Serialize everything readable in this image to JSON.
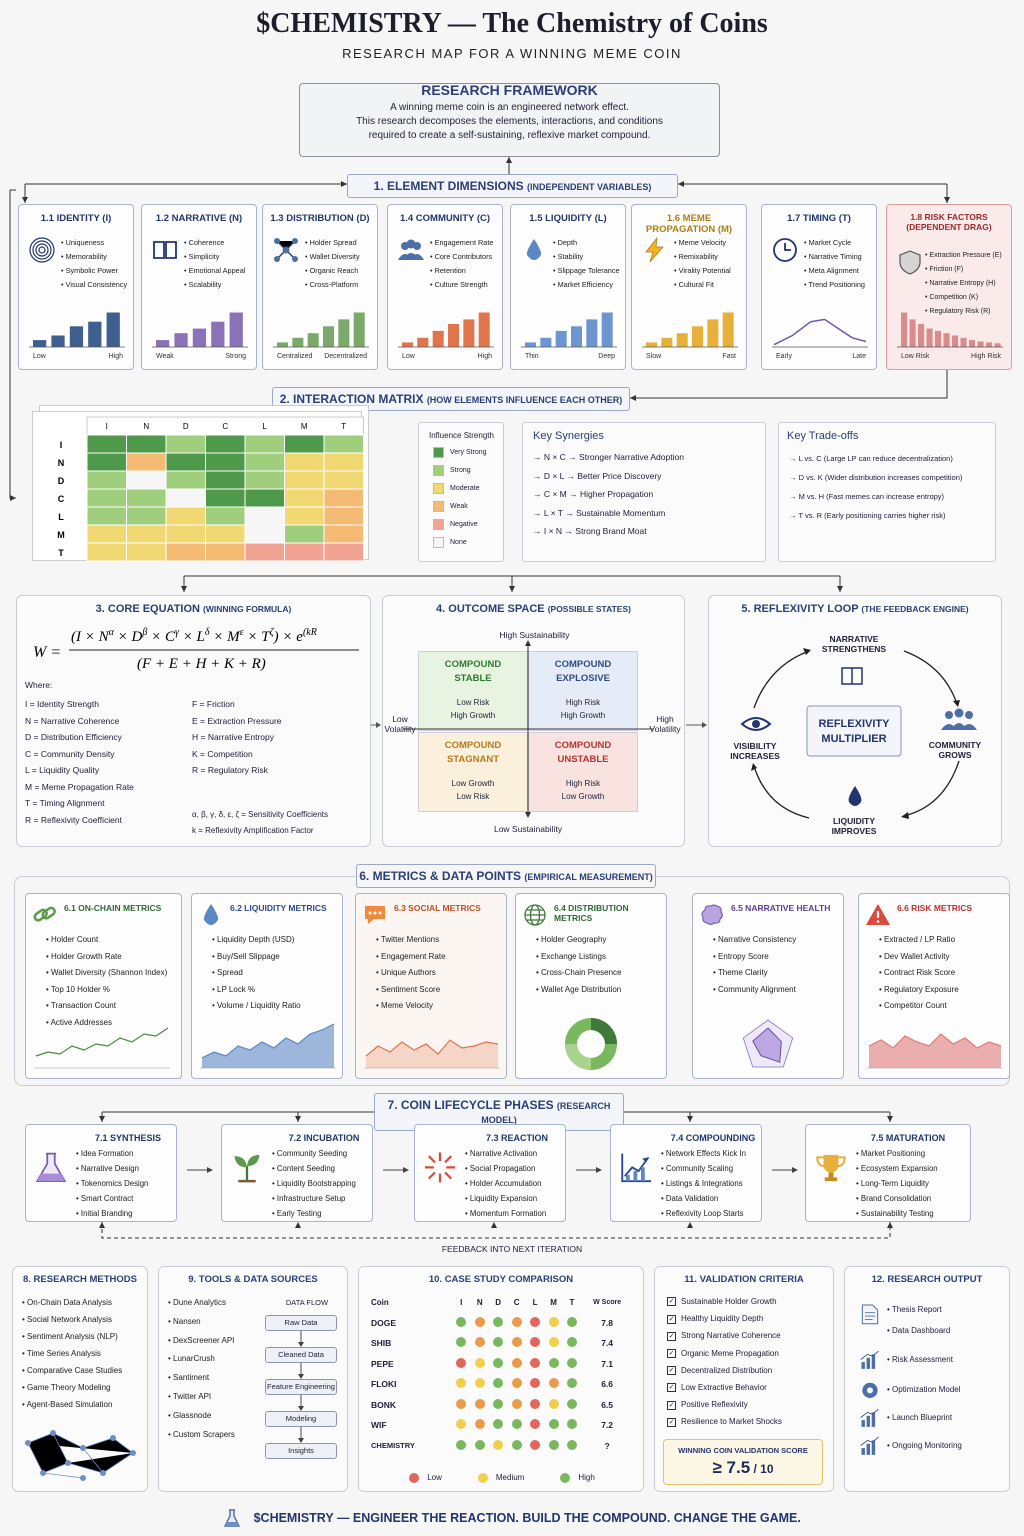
{
  "header": {
    "title": "$CHEMISTRY — The Chemistry of Coins",
    "subtitle": "RESEARCH MAP FOR A WINNING MEME COIN"
  },
  "framework": {
    "title": "RESEARCH FRAMEWORK",
    "lines": [
      "A winning meme coin is an engineered network effect.",
      "This research decomposes the elements, interactions, and conditions",
      "required to create a self-sustaining, reflexive market compound."
    ]
  },
  "s1": {
    "title": "1. ELEMENT DIMENSIONS",
    "sub": "(INDEPENDENT VARIABLES)",
    "cards": [
      {
        "title": "1.1 IDENTITY (I)",
        "icon": "fingerprint-icon",
        "items": [
          "Uniqueness",
          "Memorability",
          "Symbolic Power",
          "Visual Consistency"
        ],
        "lo": "Low",
        "hi": "High",
        "color": "#3f5f8f",
        "bars": [
          0.15,
          0.25,
          0.45,
          0.55,
          0.75
        ]
      },
      {
        "title": "1.2 NARRATIVE (N)",
        "icon": "book-icon",
        "items": [
          "Coherence",
          "Simplicity",
          "Emotional Appeal",
          "Scalability"
        ],
        "lo": "Weak",
        "hi": "Strong",
        "color": "#8a72b8",
        "bars": [
          0.15,
          0.3,
          0.4,
          0.55,
          0.75
        ]
      },
      {
        "title": "1.3 DISTRIBUTION (D)",
        "icon": "network-icon",
        "items": [
          "Holder Spread",
          "Wallet Diversity",
          "Organic Reach",
          "Cross-Platform"
        ],
        "lo": "Centralized",
        "hi": "Decentralized",
        "color": "#7aa96a",
        "bars": [
          0.1,
          0.2,
          0.3,
          0.45,
          0.6,
          0.75
        ]
      },
      {
        "title": "1.4 COMMUNITY (C)",
        "icon": "people-icon",
        "items": [
          "Engagement Rate",
          "Core Contributors",
          "Retention",
          "Culture Strength"
        ],
        "lo": "Low",
        "hi": "High",
        "color": "#e0744a",
        "bars": [
          0.1,
          0.2,
          0.35,
          0.5,
          0.6,
          0.75
        ]
      },
      {
        "title": "1.5 LIQUIDITY (L)",
        "icon": "droplet-icon",
        "items": [
          "Depth",
          "Stability",
          "Slippage Tolerance",
          "Market Efficiency"
        ],
        "lo": "Thin",
        "hi": "Deep",
        "color": "#6d96d0",
        "bars": [
          0.1,
          0.2,
          0.35,
          0.45,
          0.6,
          0.75
        ]
      },
      {
        "title": "1.6 MEME PROPAGATION (M)",
        "icon": "lightning-icon",
        "items": [
          "Meme Velocity",
          "Remixability",
          "Virality Potential",
          "Cultural Fit"
        ],
        "lo": "Slow",
        "hi": "Fast",
        "color": "#e8b03a",
        "bars": [
          0.1,
          0.2,
          0.3,
          0.45,
          0.6,
          0.75
        ]
      },
      {
        "title": "1.7 TIMING (T)",
        "icon": "clock-icon",
        "items": [
          "Market Cycle",
          "Narrative Timing",
          "Meta Alignment",
          "Trend Positioning"
        ],
        "lo": "Early",
        "hi": "Late",
        "color": "#6f59a8",
        "curve": true
      },
      {
        "title": "1.8 RISK FACTORS",
        "title2": "(DEPENDENT DRAG)",
        "icon": "shield-icon",
        "items": [
          "Extraction Pressure (E)",
          "Friction (F)",
          "Narrative Entropy (H)",
          "Competition (K)",
          "Regulatory Risk (R)"
        ],
        "lo": "Low Risk",
        "hi": "High Risk",
        "color": "#d98c8c",
        "bars": [
          0.75,
          0.6,
          0.5,
          0.4,
          0.35,
          0.3,
          0.25,
          0.2,
          0.15,
          0.12,
          0.1,
          0.08
        ]
      }
    ]
  },
  "s2": {
    "title": "2. INTERACTION MATRIX",
    "sub": "(HOW ELEMENTS INFLUENCE EACH OTHER)",
    "cols": [
      "I",
      "N",
      "D",
      "C",
      "L",
      "M",
      "T"
    ],
    "grid": [
      [
        "vs",
        "vs",
        "s",
        "vs",
        "s",
        "vs",
        "s"
      ],
      [
        "vs",
        "w",
        "vs",
        "vs",
        "s",
        "m",
        "m"
      ],
      [
        "s",
        "n",
        "s",
        "vs",
        "s",
        "m",
        "m"
      ],
      [
        "s",
        "s",
        "n",
        "vs",
        "vs",
        "m",
        "w"
      ],
      [
        "s",
        "s",
        "m",
        "s",
        "n",
        "m",
        "w"
      ],
      [
        "m",
        "m",
        "m",
        "m",
        "n",
        "s",
        "w"
      ],
      [
        "m",
        "m",
        "w",
        "w",
        "ng",
        "ng",
        "ng"
      ]
    ],
    "legend_title": "Influence Strength",
    "legend": [
      [
        "Very Strong",
        "#4f9a4a"
      ],
      [
        "Strong",
        "#9fce7c"
      ],
      [
        "Moderate",
        "#f2d872"
      ],
      [
        "Weak",
        "#f5bb74"
      ],
      [
        "Negative",
        "#f2a393"
      ],
      [
        "None",
        "#f6f6f6"
      ]
    ],
    "syn_title": "Key Synergies",
    "synergies": [
      "N × C → Stronger Narrative Adoption",
      "D × L → Better Price Discovery",
      "C × M → Higher Propagation",
      "L × T → Sustainable Momentum",
      "I × N → Strong Brand Moat"
    ],
    "trade_title": "Key Trade-offs",
    "tradeoffs": [
      "L vs. C  (Large LP can reduce decentralization)",
      "D vs. K  (Wider distribution increases competition)",
      "M vs. H  (Fast memes can increase entropy)",
      "T vs. R  (Early positioning carries higher risk)"
    ]
  },
  "s3": {
    "title": "3. CORE EQUATION",
    "sub": "(WINNING FORMULA)",
    "where": "Where:",
    "left": [
      "I  = Identity Strength",
      "N  = Narrative Coherence",
      "D  = Distribution Efficiency",
      "C  = Community Density",
      "L  = Liquidity Quality",
      "M = Meme Propagation Rate",
      "T  = Timing Alignment",
      "R  = Reflexivity Coefficient"
    ],
    "right": [
      "F  = Friction",
      "E  = Extraction Pressure",
      "H  = Narrative Entropy",
      "K  = Competition",
      "R  = Regulatory Risk"
    ],
    "coef1": "α, β, γ, δ, ε, ζ  = Sensitivity Coefficients",
    "coef2": "k  = Reflexivity Amplification Factor"
  },
  "s4": {
    "title": "4. OUTCOME SPACE",
    "sub": "(POSSIBLE STATES)",
    "top": "High Sustainability",
    "bottom": "Low Sustainability",
    "left": "Low\nVolatility",
    "right": "High\nVolatility",
    "q": [
      {
        "t": "COMPOUND\nSTABLE",
        "d": "Low Risk\nHigh Growth",
        "c": "#2f7a32",
        "bg": "#e9f3e2"
      },
      {
        "t": "COMPOUND\nEXPLOSIVE",
        "d": "High Risk\nHigh Growth",
        "c": "#2b4b8e",
        "bg": "#e6ecf7"
      },
      {
        "t": "COMPOUND\nSTAGNANT",
        "d": "Low Growth\nLow Risk",
        "c": "#b97a1c",
        "bg": "#fbf0dc"
      },
      {
        "t": "COMPOUND\nUNSTABLE",
        "d": "High Risk\nLow Growth",
        "c": "#b8342e",
        "bg": "#f9e3e0"
      }
    ]
  },
  "s5": {
    "title": "5. REFLEXIVITY LOOP",
    "sub": "(THE FEEDBACK ENGINE)",
    "center": "REFLEXIVITY\nMULTIPLIER",
    "top": "NARRATIVE\nSTRENGTHENS",
    "right": "COMMUNITY\nGROWS",
    "bottom": "LIQUIDITY\nIMPROVES",
    "left": "VISIBILITY\nINCREASES"
  },
  "s6": {
    "title": "6. METRICS & DATA POINTS",
    "sub": "(EMPIRICAL MEASUREMENT)",
    "cards": [
      {
        "title": "6.1 ON-CHAIN METRICS",
        "icon": "link-icon",
        "color": "#2f6b34",
        "items": [
          "Holder Count",
          "Holder Growth Rate",
          "Wallet Diversity (Shannon Index)",
          "Top 10 Holder %",
          "Transaction Count",
          "Active Addresses"
        ]
      },
      {
        "title": "6.2 LIQUIDITY METRICS",
        "icon": "droplet-icon",
        "color": "#2b4b8e",
        "items": [
          "Liquidity Depth (USD)",
          "Buy/Sell Slippage",
          "Spread",
          "LP Lock %",
          "Volume / Liquidity Ratio"
        ]
      },
      {
        "title": "6.3 SOCIAL METRICS",
        "icon": "chat-icon",
        "color": "#c0501e",
        "items": [
          "Twitter Mentions",
          "Engagement Rate",
          "Unique Authors",
          "Sentiment Score",
          "Meme Velocity"
        ]
      },
      {
        "title": "6.4 DISTRIBUTION METRICS",
        "icon": "globe-icon",
        "color": "#2f6b34",
        "items": [
          "Holder Geography",
          "Exchange Listings",
          "Cross-Chain Presence",
          "Wallet Age Distribution"
        ]
      },
      {
        "title": "6.5 NARRATIVE HEALTH",
        "icon": "brain-icon",
        "color": "#5c3f96",
        "items": [
          "Narrative Consistency",
          "Entropy Score",
          "Theme Clarity",
          "Community Alignment"
        ]
      },
      {
        "title": "6.6 RISK METRICS",
        "icon": "warning-icon",
        "color": "#b8342e",
        "items": [
          "Extracted / LP Ratio",
          "Dev Wallet Activity",
          "Contract Risk Score",
          "Regulatory Exposure",
          "Competitor Count"
        ]
      }
    ]
  },
  "s7": {
    "title": "7. COIN LIFECYCLE PHASES",
    "sub": "(RESEARCH MODEL)",
    "feedback": "FEEDBACK INTO NEXT ITERATION",
    "phases": [
      {
        "title": "7.1 SYNTHESIS",
        "icon": "flask-icon",
        "items": [
          "Idea Formation",
          "Narrative Design",
          "Tokenomics Design",
          "Smart Contract",
          "Initial Branding"
        ]
      },
      {
        "title": "7.2 INCUBATION",
        "icon": "sprout-icon",
        "items": [
          "Community Seeding",
          "Content Seeding",
          "Liquidity Bootstrapping",
          "Infrastructure Setup",
          "Early Testing"
        ]
      },
      {
        "title": "7.3 REACTION",
        "icon": "burst-icon",
        "items": [
          "Narrative Activation",
          "Social Propagation",
          "Holder Accumulation",
          "Liquidity Expansion",
          "Momentum Formation"
        ]
      },
      {
        "title": "7.4 COMPOUNDING",
        "icon": "growth-chart-icon",
        "items": [
          "Network Effects Kick In",
          "Community Scaling",
          "Listings & Integrations",
          "Data Validation",
          "Reflexivity Loop Starts"
        ]
      },
      {
        "title": "7.5 MATURATION",
        "icon": "trophy-icon",
        "items": [
          "Market Positioning",
          "Ecosystem Expansion",
          "Long-Term Liquidity",
          "Brand Consolidation",
          "Sustainability Testing"
        ]
      }
    ]
  },
  "s8": {
    "title": "8. RESEARCH METHODS",
    "items": [
      "On-Chain Data Analysis",
      "Social Network Analysis",
      "Sentiment Analysis (NLP)",
      "Time Series Analysis",
      "Comparative Case Studies",
      "Game Theory Modeling",
      "Agent-Based Simulation"
    ]
  },
  "s9": {
    "title": "9. TOOLS & DATA SOURCES",
    "items": [
      "Dune Analytics",
      "Nansen",
      "DexScreener API",
      "LunarCrush",
      "Santiment",
      "Twitter API",
      "Glassnode",
      "Custom Scrapers"
    ],
    "flow_title": "DATA FLOW",
    "flow": [
      "Raw Data",
      "Cleaned Data",
      "Feature Engineering",
      "Modeling",
      "Insights"
    ]
  },
  "s10": {
    "title": "10. CASE STUDY COMPARISON",
    "head": [
      "Coin",
      "I",
      "N",
      "D",
      "C",
      "L",
      "M",
      "T",
      "W Score"
    ],
    "rows": [
      {
        "coin": "DOGE",
        "dots": [
          "g",
          "o",
          "g",
          "o",
          "r",
          "y",
          "g"
        ],
        "score": "7.8"
      },
      {
        "coin": "SHIB",
        "dots": [
          "g",
          "o",
          "g",
          "o",
          "r",
          "y",
          "g"
        ],
        "score": "7.4"
      },
      {
        "coin": "PEPE",
        "dots": [
          "r",
          "y",
          "g",
          "o",
          "r",
          "g",
          "g"
        ],
        "score": "7.1"
      },
      {
        "coin": "FLOKI",
        "dots": [
          "y",
          "y",
          "g",
          "o",
          "r",
          "o",
          "g"
        ],
        "score": "6.6"
      },
      {
        "coin": "BONK",
        "dots": [
          "o",
          "o",
          "g",
          "o",
          "r",
          "y",
          "g"
        ],
        "score": "6.5"
      },
      {
        "coin": "WIF",
        "dots": [
          "y",
          "o",
          "g",
          "g",
          "r",
          "g",
          "g"
        ],
        "score": "7.2"
      },
      {
        "coin": "CHEMISTRY",
        "dots": [
          "g",
          "g",
          "y",
          "g",
          "r",
          "g",
          "g"
        ],
        "score": "?"
      }
    ],
    "legend": [
      "Low",
      "Medium",
      "High"
    ]
  },
  "s11": {
    "title": "11. VALIDATION CRITERIA",
    "items": [
      "Sustainable Holder Growth",
      "Healthy Liquidity Depth",
      "Strong Narrative Coherence",
      "Organic Meme Propagation",
      "Decentralized Distribution",
      "Low Extractive Behavior",
      "Positive Reflexivity",
      "Resilience to Market Shocks"
    ],
    "score_label": "WINNING COIN VALIDATION SCORE",
    "score": "≥ 7.5",
    "score_den": " / 10"
  },
  "s12": {
    "title": "12. RESEARCH OUTPUT",
    "items": [
      "Thesis Report",
      "Data Dashboard",
      "Risk Assessment",
      "Optimization Model",
      "Launch Blueprint",
      "Ongoing Monitoring"
    ]
  },
  "footer": "$CHEMISTRY — ENGINEER THE REACTION. BUILD THE COMPOUND.  CHANGE THE GAME."
}
